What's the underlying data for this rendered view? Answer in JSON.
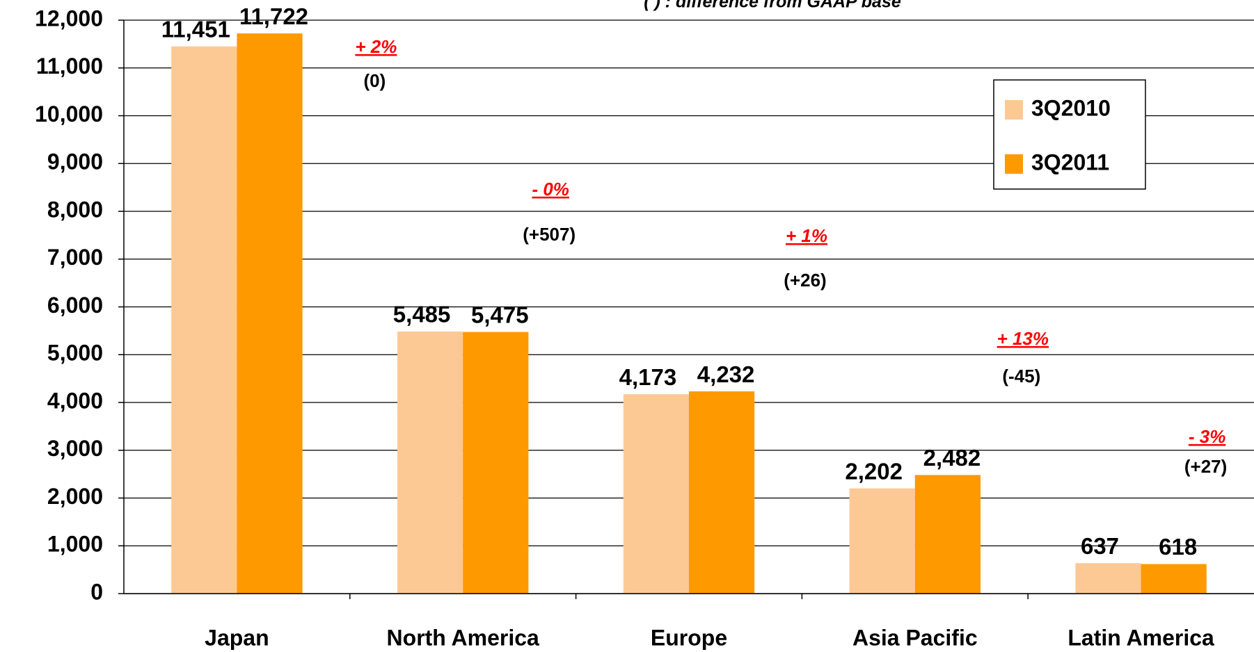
{
  "chart_data": {
    "type": "bar",
    "annotation": "( ) : difference from GAAP base",
    "categories": [
      "Japan",
      "North America",
      "Europe",
      "Asia Pacific",
      "Latin America"
    ],
    "series": [
      {
        "name": "3Q2010",
        "color": "#fcc995",
        "values": [
          11451,
          5485,
          4173,
          2202,
          637
        ],
        "value_labels": [
          "11,451",
          "5,485",
          "4,173",
          "2,202",
          "637"
        ]
      },
      {
        "name": "3Q2011",
        "color": "#ff9900",
        "values": [
          11722,
          5475,
          4232,
          2482,
          618
        ],
        "value_labels": [
          "11,722",
          "5,475",
          "4,232",
          "2,482",
          "618"
        ]
      }
    ],
    "growth_labels": [
      "+ 2%",
      "- 0%",
      "+ 1%",
      "+ 13%",
      "- 3%"
    ],
    "difference_labels": [
      "(0)",
      "(+507)",
      "(+26)",
      "(-45)",
      "(+27)"
    ],
    "ylim": [
      0,
      12000
    ],
    "yticks": [
      0,
      {
        "value": 1000,
        "label": "1,000"
      },
      {
        "value": 2000,
        "label": "2,000"
      },
      {
        "value": 3000,
        "label": "3,000"
      },
      {
        "value": 4000,
        "label": "4,000"
      },
      {
        "value": 5000,
        "label": "5,000"
      },
      {
        "value": 6000,
        "label": "6,000"
      },
      {
        "value": 7000,
        "label": "7,000"
      },
      {
        "value": 8000,
        "label": "8,000"
      },
      {
        "value": 9000,
        "label": "9,000"
      },
      {
        "value": 10000,
        "label": "10,000"
      },
      {
        "value": 11000,
        "label": "11,000"
      },
      {
        "value": 12000,
        "label": "12,000"
      }
    ],
    "grid": true,
    "legend": "upper right"
  }
}
